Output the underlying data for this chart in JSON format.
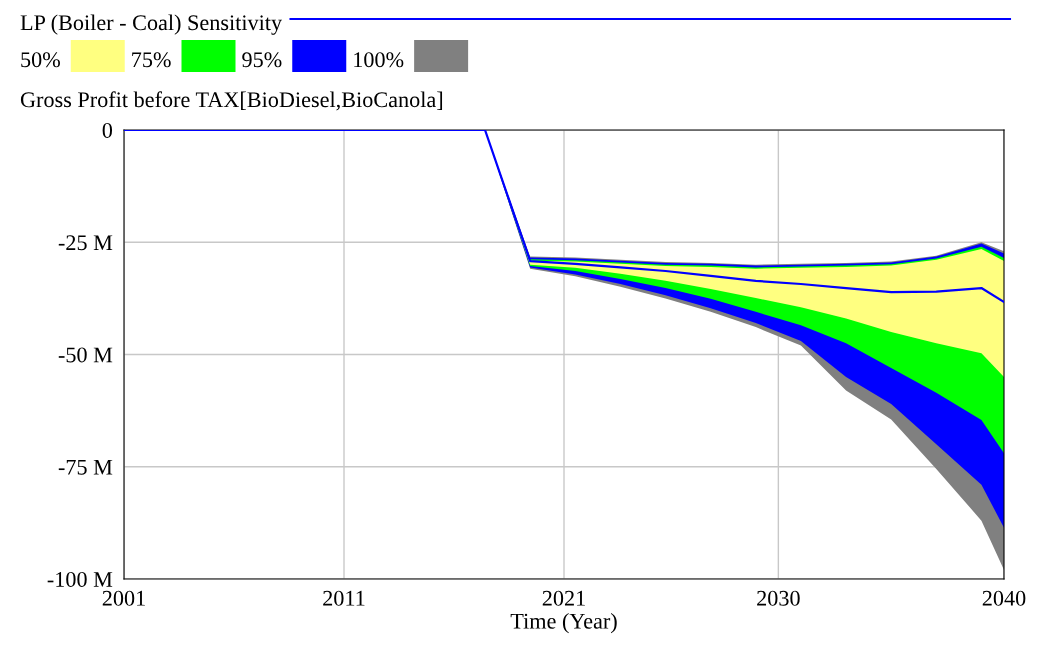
{
  "chart_data": {
    "type": "line",
    "subtitle": "Gross Profit before TAX[BioDiesel,BioCanola]",
    "xlabel": "Time (Year)",
    "x": [
      2001,
      2017,
      2019,
      2021,
      2023,
      2025,
      2027,
      2029,
      2031,
      2033,
      2035,
      2037,
      2039,
      2040
    ],
    "series": [
      {
        "name": "50%",
        "color": "#ffff80",
        "values": [
          null,
          null,
          null,
          null,
          null,
          null,
          null,
          null,
          null,
          null,
          null,
          null,
          null,
          null
        ],
        "upper": [
          0,
          0,
          -29.1,
          -29.3,
          -29.8,
          -30.3,
          -30.5,
          -30.9,
          -30.7,
          -30.5,
          -30.2,
          -28.9,
          -26.5,
          -29.2
        ],
        "lower": [
          0,
          0,
          -30.0,
          -30.7,
          -32.0,
          -33.6,
          -35.4,
          -37.4,
          -39.5,
          -42.0,
          -45.0,
          -47.5,
          -49.7,
          -55.0
        ]
      },
      {
        "name": "75%",
        "color": "#00ff00",
        "values": [
          null,
          null,
          null,
          null,
          null,
          null,
          null,
          null,
          null,
          null,
          null,
          null,
          null,
          null
        ],
        "upper": [
          0,
          0,
          -28.8,
          -29.0,
          -29.5,
          -30.0,
          -30.2,
          -30.6,
          -30.4,
          -30.2,
          -29.9,
          -28.6,
          -26.0,
          -28.5
        ],
        "lower": [
          0,
          0,
          -30.3,
          -31.4,
          -33.2,
          -35.2,
          -37.6,
          -40.5,
          -43.5,
          -47.5,
          -53.0,
          -58.5,
          -64.6,
          -72.0
        ]
      },
      {
        "name": "95%",
        "color": "#0000ff",
        "values": [
          null,
          null,
          null,
          null,
          null,
          null,
          null,
          null,
          null,
          null,
          null,
          null,
          null,
          null
        ],
        "upper": [
          0,
          0,
          -28.4,
          -28.6,
          -29.1,
          -29.6,
          -29.8,
          -30.2,
          -30.0,
          -29.8,
          -29.5,
          -28.2,
          -25.3,
          -27.5
        ],
        "lower": [
          0,
          0,
          -30.6,
          -32.2,
          -34.3,
          -36.8,
          -39.7,
          -43.0,
          -47.0,
          -55.0,
          -61.0,
          -70.0,
          -79.0,
          -88.6
        ]
      },
      {
        "name": "100%",
        "color": "#808080",
        "values": [
          null,
          null,
          null,
          null,
          null,
          null,
          null,
          null,
          null,
          null,
          null,
          null,
          null,
          null
        ],
        "upper": [
          0,
          0,
          -28.2,
          -28.4,
          -28.9,
          -29.4,
          -29.6,
          -30.0,
          -29.8,
          -29.6,
          -29.3,
          -28.0,
          -25.0,
          -27.0
        ],
        "lower": [
          0,
          0,
          -30.9,
          -32.6,
          -34.9,
          -37.5,
          -40.5,
          -43.9,
          -48.0,
          -58.0,
          -64.5,
          -75.5,
          -87.0,
          -98.0
        ]
      },
      {
        "name": "LP (Boiler - Coal) Sensitivity",
        "color": "#0000ff",
        "values": [
          0,
          0,
          -29.2,
          -29.8,
          -30.6,
          -31.4,
          -32.5,
          -33.6,
          -34.3,
          -35.2,
          -36.1,
          -36.0,
          -35.2,
          -38.3
        ]
      }
    ],
    "xlim": [
      2001,
      2040
    ],
    "xticks": [
      2001,
      {
        "value": 2010.75,
        "label": "2011"
      },
      {
        "value": 2020.5,
        "label": "2021"
      },
      2030,
      2040
    ],
    "ylim": [
      -100,
      0
    ],
    "yticks": [
      {
        "value": -100,
        "label": "-100 M"
      },
      {
        "value": -75,
        "label": "-75 M"
      },
      {
        "value": -50,
        "label": "-50 M"
      },
      {
        "value": -25,
        "label": "-25 M"
      },
      0
    ],
    "grid": true,
    "legend": "top"
  }
}
